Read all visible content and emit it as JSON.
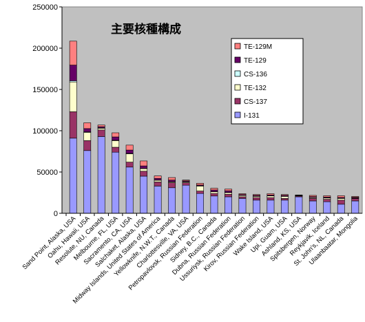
{
  "chart_data": {
    "type": "bar",
    "stacked": true,
    "title": "主要核種構成",
    "xlabel": "",
    "ylabel": "",
    "ylim": [
      0,
      250000
    ],
    "yticks": [
      0,
      50000,
      100000,
      150000,
      200000,
      250000
    ],
    "grid": false,
    "legend_position": "top-right",
    "categories": [
      "Sand Point, Alaska, USA",
      "Oahu, Hawaii, USA",
      "Resolute, NU, Canada",
      "Melbourne, FL, USA",
      "Sacramento, CA, USA",
      "Salchaket, Alaska, USA",
      "Midway Islands, United States of America",
      "Yellowknife, N.W.T., Canada",
      "Charlottesville, VA, USA",
      "Petropavlovsk, Russian Federation",
      "Sidney, B.C., Canada",
      "Dubna, Russian Federation",
      "Ussuriysk, Russian Federation",
      "Kirov, Russian Federation",
      "Wake Island, USA",
      "Upi, Guam, USA",
      "Ashland, KS, USA",
      "Spitsbergen, Norway",
      "Reykjavik, Iceland",
      "St. John's, NL, Canada",
      "Ulaanbaatar, Mongolia"
    ],
    "series": [
      {
        "name": "I-131",
        "color": "#9999FF",
        "values": [
          91000,
          76000,
          93000,
          74000,
          56000,
          45000,
          33000,
          31000,
          34000,
          24000,
          21000,
          20000,
          18000,
          16000,
          16000,
          16000,
          20000,
          15000,
          14000,
          11000,
          15000
        ]
      },
      {
        "name": "CS-137",
        "color": "#993366",
        "values": [
          32000,
          12000,
          8000,
          6000,
          6000,
          6000,
          5000,
          6000,
          3000,
          3000,
          3000,
          3000,
          2000,
          3000,
          3000,
          2000,
          1000,
          3000,
          3000,
          5000,
          3000
        ]
      },
      {
        "name": "TE-132",
        "color": "#FFFFCC",
        "values": [
          36000,
          10000,
          2000,
          8000,
          10000,
          3000,
          2000,
          1000,
          1000,
          6000,
          2000,
          2000,
          1500,
          1500,
          2000,
          2500,
          300,
          1000,
          1500,
          2000,
          500
        ]
      },
      {
        "name": "CS-136",
        "color": "#CCFFFF",
        "values": [
          1500,
          600,
          400,
          500,
          600,
          400,
          300,
          300,
          300,
          300,
          300,
          300,
          200,
          200,
          200,
          200,
          100,
          200,
          200,
          200,
          200
        ]
      },
      {
        "name": "TE-129",
        "color": "#660066",
        "values": [
          19000,
          4000,
          1500,
          4000,
          4000,
          3000,
          2000,
          2000,
          1000,
          1000,
          2000,
          2000,
          1000,
          1000,
          1000,
          1000,
          500,
          1000,
          1000,
          1000,
          700
        ]
      },
      {
        "name": "TE-129M",
        "color": "#FF8080",
        "values": [
          29000,
          7000,
          2000,
          5000,
          6000,
          6000,
          3000,
          3000,
          1000,
          2000,
          2000,
          2000,
          1000,
          1000,
          1500,
          1000,
          300,
          1500,
          1500,
          2000,
          1000
        ]
      }
    ],
    "colors": {
      "plot_background": "#C0C0C0",
      "page_background": "#FFFFFF"
    }
  }
}
